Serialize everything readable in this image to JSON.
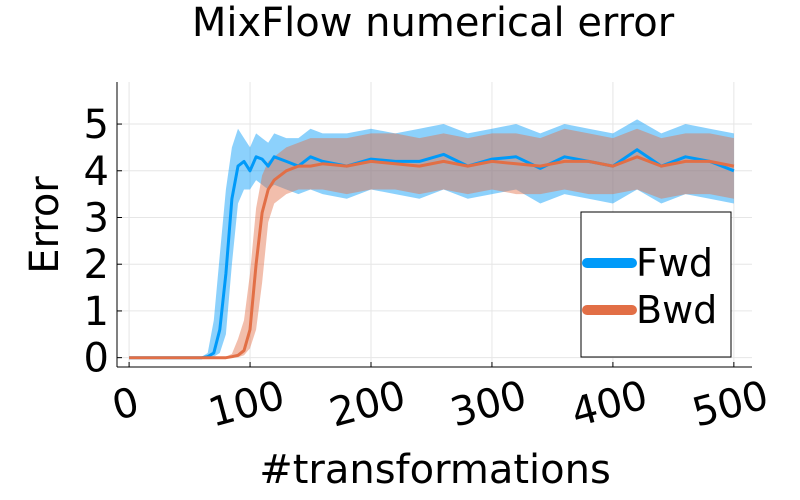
{
  "chart_data": {
    "type": "line",
    "title": "MixFlow numerical error",
    "xlabel": "#transformations",
    "ylabel": "Error",
    "xlim": [
      -10,
      515
    ],
    "ylim": [
      -0.2,
      5.9
    ],
    "x_ticks": [
      0,
      100,
      200,
      300,
      400,
      500
    ],
    "x_tick_labels": [
      "0",
      "100",
      "200",
      "300",
      "400",
      "500"
    ],
    "y_ticks": [
      0,
      1,
      2,
      3,
      4,
      5
    ],
    "y_tick_labels": [
      "0",
      "1",
      "2",
      "3",
      "4",
      "5"
    ],
    "grid": true,
    "x_tick_rotation": "rotated",
    "legend_position": "bottom-right",
    "x": [
      0,
      10,
      20,
      30,
      40,
      50,
      60,
      65,
      70,
      75,
      80,
      85,
      90,
      95,
      100,
      105,
      110,
      115,
      120,
      130,
      140,
      150,
      160,
      180,
      200,
      220,
      240,
      260,
      280,
      300,
      320,
      340,
      360,
      380,
      400,
      420,
      440,
      460,
      480,
      500
    ],
    "series": [
      {
        "name": "Fwd",
        "color": "#009af9",
        "values": [
          0,
          0,
          0,
          0,
          0,
          0,
          0,
          0.02,
          0.1,
          0.6,
          1.8,
          3.4,
          4.1,
          4.2,
          4.0,
          4.3,
          4.25,
          4.1,
          4.3,
          4.2,
          4.1,
          4.3,
          4.2,
          4.1,
          4.25,
          4.2,
          4.2,
          4.35,
          4.1,
          4.25,
          4.3,
          4.05,
          4.3,
          4.2,
          4.1,
          4.45,
          4.1,
          4.3,
          4.2,
          4.0
        ],
        "lower": [
          0,
          0,
          0,
          0,
          0,
          0,
          0,
          0,
          0.02,
          0.1,
          0.5,
          2.0,
          3.3,
          3.6,
          3.6,
          3.8,
          3.7,
          3.6,
          3.7,
          3.6,
          3.5,
          3.6,
          3.5,
          3.4,
          3.6,
          3.5,
          3.4,
          3.6,
          3.4,
          3.5,
          3.6,
          3.3,
          3.5,
          3.4,
          3.3,
          3.6,
          3.3,
          3.5,
          3.4,
          3.3
        ],
        "upper": [
          0.01,
          0.01,
          0.01,
          0.01,
          0.01,
          0.01,
          0.02,
          0.1,
          0.8,
          2.2,
          3.6,
          4.5,
          4.9,
          4.7,
          4.5,
          4.8,
          4.7,
          4.6,
          4.8,
          4.7,
          4.7,
          4.9,
          4.8,
          4.8,
          4.9,
          4.8,
          4.9,
          5.0,
          4.8,
          4.9,
          5.0,
          4.8,
          5.0,
          4.9,
          4.8,
          5.1,
          4.8,
          5.0,
          4.9,
          4.8
        ]
      },
      {
        "name": "Bwd",
        "color": "#e26f46",
        "values": [
          0,
          0,
          0,
          0,
          0,
          0,
          0,
          0,
          0,
          0,
          0,
          0.02,
          0.05,
          0.15,
          0.6,
          2.0,
          3.1,
          3.6,
          3.8,
          4.0,
          4.1,
          4.1,
          4.15,
          4.1,
          4.2,
          4.15,
          4.1,
          4.2,
          4.1,
          4.2,
          4.15,
          4.1,
          4.2,
          4.2,
          4.1,
          4.3,
          4.1,
          4.2,
          4.2,
          4.1
        ],
        "lower": [
          0,
          0,
          0,
          0,
          0,
          0,
          0,
          0,
          0,
          0,
          0,
          0,
          0.01,
          0.05,
          0.2,
          0.6,
          1.6,
          2.9,
          3.3,
          3.5,
          3.6,
          3.6,
          3.6,
          3.5,
          3.6,
          3.6,
          3.5,
          3.6,
          3.5,
          3.6,
          3.5,
          3.5,
          3.6,
          3.5,
          3.5,
          3.6,
          3.4,
          3.5,
          3.5,
          3.4
        ],
        "upper": [
          0.01,
          0.01,
          0.01,
          0.01,
          0.01,
          0.01,
          0.01,
          0.01,
          0.01,
          0.01,
          0.02,
          0.08,
          0.4,
          0.8,
          1.8,
          3.2,
          3.9,
          4.2,
          4.3,
          4.5,
          4.6,
          4.7,
          4.7,
          4.7,
          4.8,
          4.8,
          4.7,
          4.8,
          4.7,
          4.8,
          4.8,
          4.7,
          4.9,
          4.8,
          4.7,
          4.9,
          4.7,
          4.8,
          4.8,
          4.7
        ]
      }
    ]
  }
}
